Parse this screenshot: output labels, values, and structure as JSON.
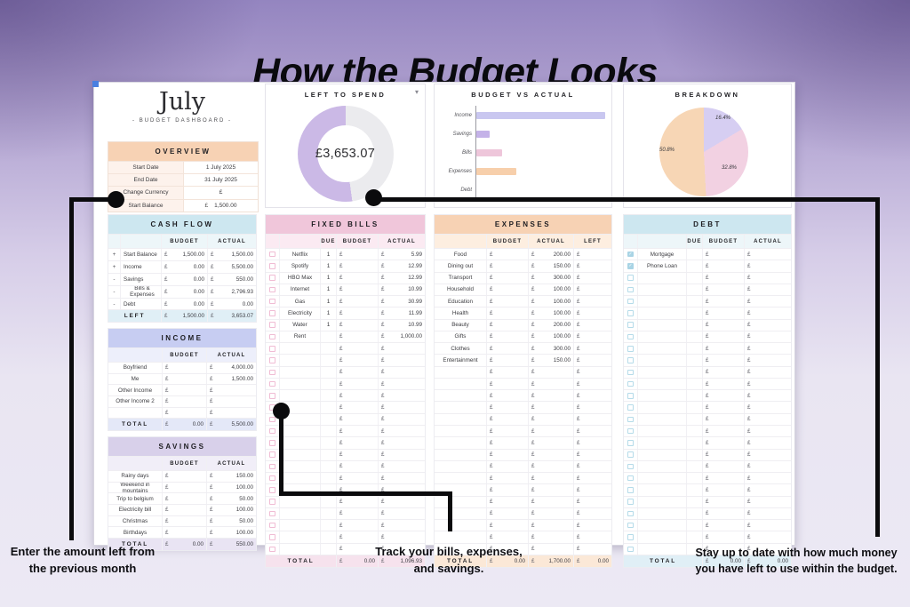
{
  "page": {
    "title": "How the Budget Looks"
  },
  "dashboard": {
    "month": "July",
    "subtitle": "- BUDGET DASHBOARD -"
  },
  "overview": {
    "title": "OVERVIEW",
    "rows": [
      {
        "label": "Start Date",
        "value": "1 July 2025"
      },
      {
        "label": "End Date",
        "value": "31 July 2025"
      },
      {
        "label": "Change Currency",
        "value": "£"
      },
      {
        "label": "Start Balance",
        "cur": "£",
        "value": "1,500.00"
      }
    ]
  },
  "charts": {
    "left_to_spend": {
      "title": "LEFT TO SPEND",
      "amount": "£3,653.07",
      "fraction_left": 0.522,
      "ring_color": "#cbb9e6",
      "track_color": "#ebebee",
      "dropdown_icon": "▾"
    },
    "budget_vs_actual": {
      "title": "BUDGET VS ACTUAL",
      "categories": [
        "Income",
        "Savings",
        "Bills",
        "Expenses",
        "Debt"
      ],
      "values": [
        5500,
        550,
        1096.93,
        1700,
        0
      ],
      "colors": [
        "#c9c7f0",
        "#c4b2e8",
        "#eec6da",
        "#f7cfab",
        "#cccccc"
      ],
      "max": 5500
    },
    "breakdown": {
      "title": "BREAKDOWN",
      "slices": [
        {
          "label": "16.4%",
          "value": 16.4,
          "color": "#d6cef2"
        },
        {
          "label": "32.8%",
          "value": 32.8,
          "color": "#f2d1e2"
        },
        {
          "label": "50.8%",
          "value": 50.8,
          "color": "#f7d6b5"
        }
      ]
    }
  },
  "chart_data": [
    {
      "type": "pie",
      "title": "LEFT TO SPEND (donut)",
      "center_label": "£3,653.07",
      "labels": [
        "Left",
        "Spent"
      ],
      "values": [
        52.2,
        47.8
      ]
    },
    {
      "type": "bar",
      "title": "BUDGET VS ACTUAL",
      "orientation": "horizontal",
      "categories": [
        "Income",
        "Savings",
        "Bills",
        "Expenses",
        "Debt"
      ],
      "values": [
        5500,
        550,
        1096.93,
        1700,
        0
      ],
      "xlim": [
        0,
        5500
      ]
    },
    {
      "type": "pie",
      "title": "BREAKDOWN",
      "labels": [
        "16.4%",
        "32.8%",
        "50.8%"
      ],
      "values": [
        16.4,
        32.8,
        50.8
      ]
    }
  ],
  "tables": {
    "cash_flow": {
      "title": "CASH FLOW",
      "theme": "blue",
      "layout": "sign",
      "cols": [
        "BUDGET",
        "ACTUAL"
      ],
      "rows": [
        {
          "s": "+",
          "n": "Start Balance",
          "m": [
            "1,500.00",
            "1,500.00"
          ]
        },
        {
          "s": "+",
          "n": "Income",
          "m": [
            "0.00",
            "5,500.00"
          ]
        },
        {
          "s": "-",
          "n": "Savings",
          "m": [
            "0.00",
            "550.00"
          ]
        },
        {
          "s": "-",
          "n": "Bills & Expenses",
          "m": [
            "0.00",
            "2,796.93"
          ]
        },
        {
          "s": "-",
          "n": "Debt",
          "m": [
            "0.00",
            "0.00"
          ]
        }
      ],
      "empty_rows": 0,
      "total": {
        "n": "LEFT",
        "m": [
          "1,500.00",
          "3,653.07"
        ]
      }
    },
    "fixed_bills": {
      "title": "FIXED BILLS",
      "theme": "pink",
      "layout": "check",
      "cols": [
        "DUE",
        "BUDGET",
        "ACTUAL"
      ],
      "rows": [
        {
          "n": "Netflix",
          "due": "1",
          "m": [
            "",
            "5.99"
          ]
        },
        {
          "n": "Spotify",
          "due": "1",
          "m": [
            "",
            "12.99"
          ]
        },
        {
          "n": "HBO Max",
          "due": "1",
          "m": [
            "",
            "12.99"
          ]
        },
        {
          "n": "Internet",
          "due": "1",
          "m": [
            "",
            "10.99"
          ]
        },
        {
          "n": "Gas",
          "due": "1",
          "m": [
            "",
            "30.99"
          ]
        },
        {
          "n": "Electricity",
          "due": "1",
          "m": [
            "",
            "11.99"
          ]
        },
        {
          "n": "Water",
          "due": "1",
          "m": [
            "",
            "10.99"
          ]
        },
        {
          "n": "Rent",
          "due": "",
          "m": [
            "",
            "1,000.00"
          ]
        }
      ],
      "empty_rows": 18,
      "total": {
        "n": "TOTAL",
        "m": [
          "0.00",
          "1,096.93"
        ]
      }
    },
    "expenses": {
      "title": "EXPENSES",
      "theme": "peach",
      "layout": "plain3",
      "cols": [
        "BUDGET",
        "ACTUAL",
        "LEFT"
      ],
      "rows": [
        {
          "n": "Food",
          "m": [
            "",
            "200.00",
            ""
          ]
        },
        {
          "n": "Dining out",
          "m": [
            "",
            "150.00",
            ""
          ]
        },
        {
          "n": "Transport",
          "m": [
            "",
            "300.00",
            ""
          ]
        },
        {
          "n": "Household",
          "m": [
            "",
            "100.00",
            ""
          ]
        },
        {
          "n": "Education",
          "m": [
            "",
            "100.00",
            ""
          ]
        },
        {
          "n": "Health",
          "m": [
            "",
            "100.00",
            ""
          ]
        },
        {
          "n": "Beauty",
          "m": [
            "",
            "200.00",
            ""
          ]
        },
        {
          "n": "Gifts",
          "m": [
            "",
            "100.00",
            ""
          ]
        },
        {
          "n": "Clothes",
          "m": [
            "",
            "300.00",
            ""
          ]
        },
        {
          "n": "Entertainment",
          "m": [
            "",
            "150.00",
            ""
          ]
        }
      ],
      "empty_rows": 16,
      "total": {
        "n": "TOTAL",
        "m": [
          "0.00",
          "1,700.00",
          "0.00"
        ]
      }
    },
    "debt": {
      "title": "DEBT",
      "theme": "blue",
      "layout": "check",
      "cols": [
        "DUE",
        "BUDGET",
        "ACTUAL"
      ],
      "rows": [
        {
          "n": "Mortgage",
          "due": "",
          "checked": true,
          "m": [
            "",
            ""
          ]
        },
        {
          "n": "Phone Loan",
          "due": "",
          "checked": true,
          "m": [
            "",
            ""
          ]
        }
      ],
      "empty_rows": 24,
      "total": {
        "n": "TOTAL",
        "m": [
          "0.00",
          "0.00"
        ]
      }
    },
    "income": {
      "title": "INCOME",
      "theme": "peri",
      "layout": "plain2",
      "cols": [
        "BUDGET",
        "ACTUAL"
      ],
      "rows": [
        {
          "n": "Boyfriend",
          "m": [
            "",
            "4,000.00"
          ]
        },
        {
          "n": "Me",
          "m": [
            "",
            "1,500.00"
          ]
        },
        {
          "n": "Other Income",
          "m": [
            "",
            ""
          ]
        },
        {
          "n": "Other Income 2",
          "m": [
            "",
            ""
          ]
        },
        {
          "n": "",
          "m": [
            "",
            ""
          ]
        }
      ],
      "empty_rows": 0,
      "total": {
        "n": "TOTAL",
        "m": [
          "0.00",
          "5,500.00"
        ]
      }
    },
    "savings": {
      "title": "SAVINGS",
      "theme": "purple",
      "layout": "plain2",
      "cols": [
        "BUDGET",
        "ACTUAL"
      ],
      "rows": [
        {
          "n": "Rainy days",
          "m": [
            "",
            "150.00"
          ]
        },
        {
          "n": "Weekend in mountains",
          "m": [
            "",
            "100.00"
          ]
        },
        {
          "n": "Trip to belgium",
          "m": [
            "",
            "50.00"
          ]
        },
        {
          "n": "Electricity bill",
          "m": [
            "",
            "100.00"
          ]
        },
        {
          "n": "Christmas",
          "m": [
            "",
            "50.00"
          ]
        },
        {
          "n": "Birthdays",
          "m": [
            "",
            "100.00"
          ]
        }
      ],
      "empty_rows": 0,
      "total": {
        "n": "TOTAL",
        "m": [
          "0.00",
          "550.00"
        ]
      }
    }
  },
  "annotations": {
    "left": "Enter the amount left from\nthe previous month",
    "center": "Track your bills, expenses,\nand savings.",
    "right": "Stay up to date with how much money\nyou have left to use within the budget."
  }
}
